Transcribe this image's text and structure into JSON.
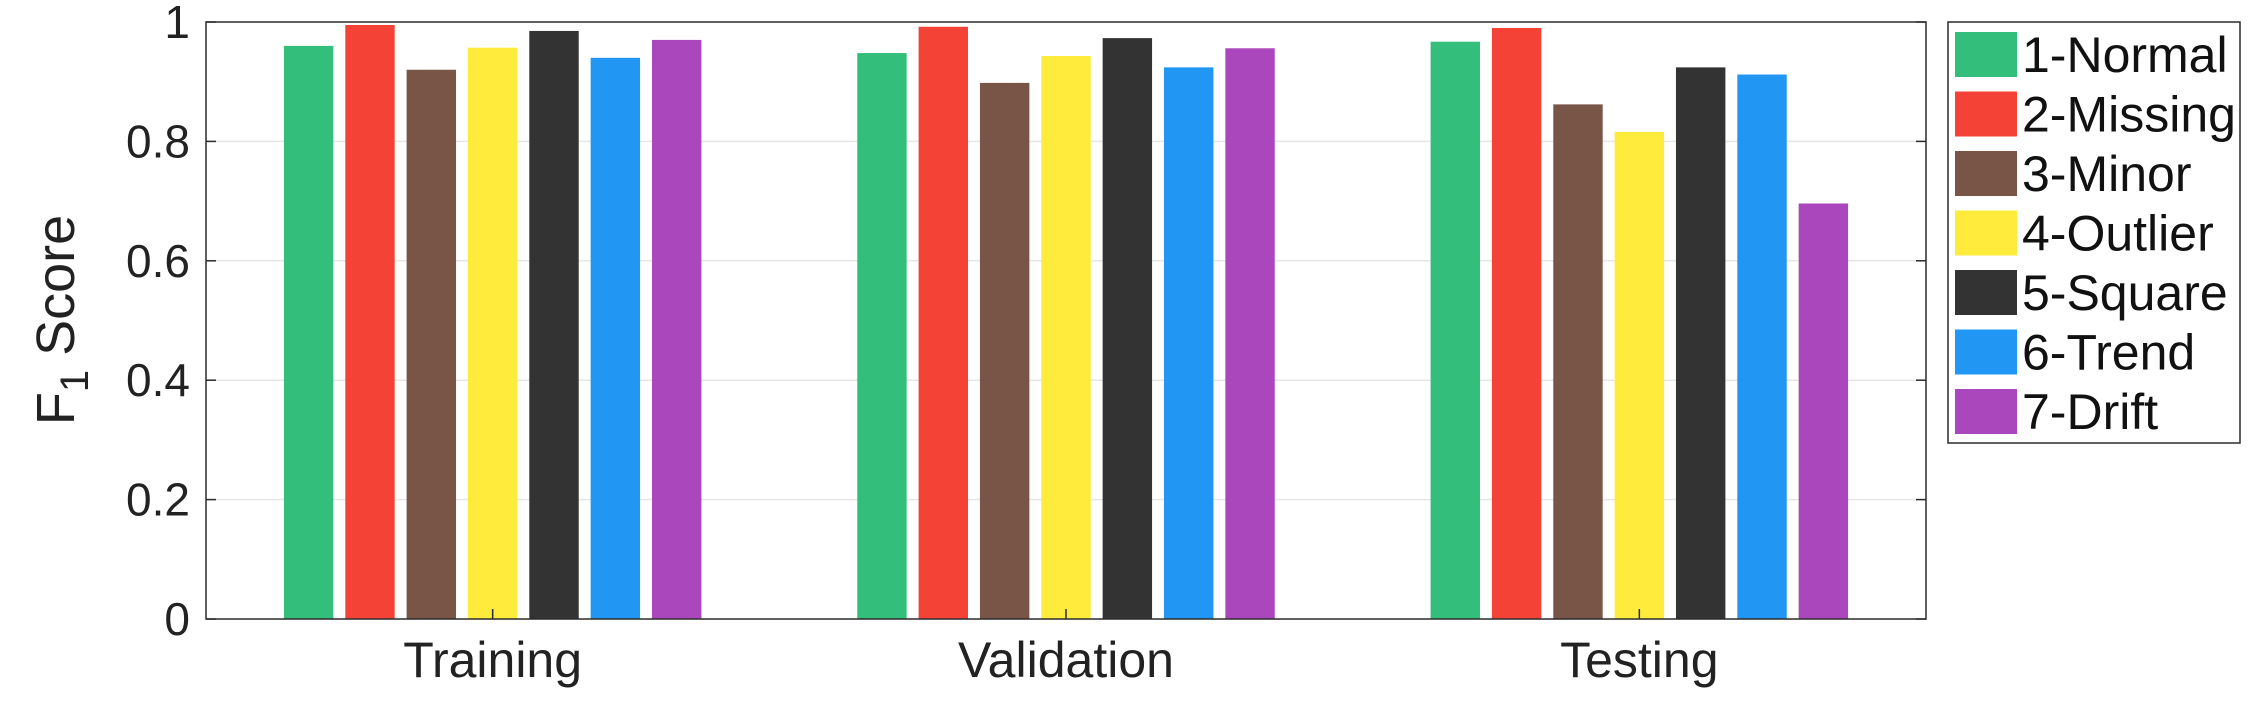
{
  "chart_data": {
    "type": "bar",
    "title": "",
    "xlabel": "",
    "ylabel": "Score",
    "ylabel_prefix": "F",
    "ylabel_subscript": "1",
    "categories": [
      "Training",
      "Validation",
      "Testing"
    ],
    "ylim": [
      0,
      1
    ],
    "yticks": [
      0,
      0.2,
      0.4,
      0.6,
      0.8,
      1
    ],
    "ytick_labels": [
      "0",
      "0.2",
      "0.4",
      "0.6",
      "0.8",
      "1"
    ],
    "grid": true,
    "legend_position": "outside-right",
    "series": [
      {
        "name": "1-Normal",
        "color": "#33bf7b",
        "values": [
          0.96,
          0.948,
          0.967
        ]
      },
      {
        "name": "2-Missing",
        "color": "#f44336",
        "values": [
          0.995,
          0.992,
          0.99
        ]
      },
      {
        "name": "3-Minor",
        "color": "#795548",
        "values": [
          0.92,
          0.898,
          0.862
        ]
      },
      {
        "name": "4-Outlier",
        "color": "#ffeb3b",
        "values": [
          0.957,
          0.943,
          0.816
        ]
      },
      {
        "name": "5-Square",
        "color": "#333333",
        "values": [
          0.985,
          0.973,
          0.924
        ]
      },
      {
        "name": "6-Trend",
        "color": "#2196f3",
        "values": [
          0.94,
          0.924,
          0.912
        ]
      },
      {
        "name": "7-Drift",
        "color": "#ab47bc",
        "values": [
          0.97,
          0.956,
          0.696
        ]
      }
    ]
  }
}
